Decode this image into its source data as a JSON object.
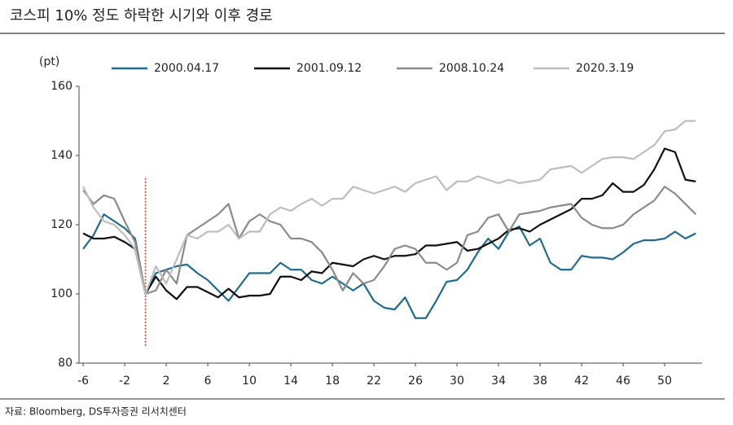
{
  "chart_data": {
    "type": "line",
    "title": "코스피 10% 정도 하락한 시기와 이후 경로",
    "y_label": "(pt)",
    "source": "자료: Bloomberg, DS투자증권 리서치센터",
    "x": [
      -6,
      -5,
      -4,
      -3,
      -2,
      -1,
      0,
      1,
      2,
      3,
      4,
      5,
      6,
      7,
      8,
      9,
      10,
      11,
      12,
      13,
      14,
      15,
      16,
      17,
      18,
      19,
      20,
      21,
      22,
      23,
      24,
      25,
      26,
      27,
      28,
      29,
      30,
      31,
      32,
      33,
      34,
      35,
      36,
      37,
      38,
      39,
      40,
      41,
      42,
      43,
      44,
      45,
      46,
      47,
      48,
      49,
      50,
      51,
      52,
      53
    ],
    "series": [
      {
        "name": "2000.04.17",
        "color": "#1f6b8e",
        "values": [
          113,
          117,
          123,
          121,
          119,
          116,
          100,
          106,
          107,
          108,
          108.5,
          106,
          104,
          101,
          98,
          102,
          106,
          106,
          106,
          109,
          107,
          107,
          104,
          103,
          105,
          103,
          101,
          103,
          98,
          96,
          95.5,
          99,
          93,
          93,
          98,
          103.5,
          104,
          107,
          112,
          116,
          113,
          118,
          119.5,
          114,
          116,
          109,
          107,
          107,
          111,
          110.5,
          110.5,
          110,
          112,
          114.5,
          115.5,
          115.5,
          116,
          118,
          116,
          117.5
        ]
      },
      {
        "name": "2001.09.12",
        "color": "#111111",
        "values": [
          117.5,
          116,
          116,
          116.5,
          115,
          113,
          100,
          105,
          101,
          98.5,
          102,
          102,
          100.5,
          99,
          101.5,
          99,
          99.5,
          99.5,
          100,
          105,
          105,
          104,
          106.5,
          106,
          109,
          108.5,
          108,
          110,
          111,
          110,
          111,
          111,
          111.5,
          114,
          114,
          114.5,
          115,
          112.5,
          113,
          114.5,
          116,
          118.5,
          119,
          118,
          120,
          121.5,
          123,
          124.5,
          127.5,
          127.5,
          128.5,
          132,
          129.5,
          129.5,
          131.5,
          136,
          142,
          141,
          133,
          132.5
        ]
      },
      {
        "name": "2008.10.24",
        "color": "#8a8a8a",
        "values": [
          130,
          126,
          128.5,
          127.5,
          121,
          115,
          100,
          101,
          107,
          103,
          117,
          119,
          121,
          123,
          126,
          116,
          121,
          123,
          121,
          120,
          116,
          116,
          115,
          112,
          107,
          101,
          106,
          103,
          104,
          108,
          113,
          114,
          113,
          109,
          109,
          107,
          109,
          117,
          118,
          122,
          123,
          118,
          123,
          123.5,
          124,
          125,
          125.5,
          126,
          122,
          120,
          119,
          119,
          120,
          123,
          125,
          127,
          131,
          129,
          126,
          123
        ]
      },
      {
        "name": "2020.3.19",
        "color": "#bdbdbd",
        "values": [
          131,
          125,
          121,
          120,
          117,
          113,
          100,
          108,
          103,
          110,
          117,
          116,
          118,
          118,
          120,
          116,
          118,
          118,
          123,
          125,
          124,
          126,
          127.5,
          125.5,
          127.5,
          127.5,
          131,
          130,
          129,
          130,
          131,
          129.5,
          132,
          133,
          134,
          130,
          132.5,
          132.5,
          134,
          133,
          132,
          133,
          132,
          132.5,
          133,
          136,
          136.5,
          137,
          135,
          137,
          139,
          139.5,
          139.5,
          139,
          141,
          143,
          147,
          147.5,
          150,
          150
        ]
      }
    ],
    "xlim": [
      -6.4,
      53.6
    ],
    "xticks": [
      -6,
      -2,
      2,
      6,
      10,
      14,
      18,
      22,
      26,
      30,
      34,
      38,
      42,
      46,
      50
    ],
    "ylim": [
      80,
      160
    ],
    "yticks": [
      80,
      100,
      120,
      140,
      160
    ],
    "legend": "top",
    "event_line": {
      "x": 0,
      "y_range": [
        85,
        134
      ],
      "color": "#d9342b"
    }
  }
}
